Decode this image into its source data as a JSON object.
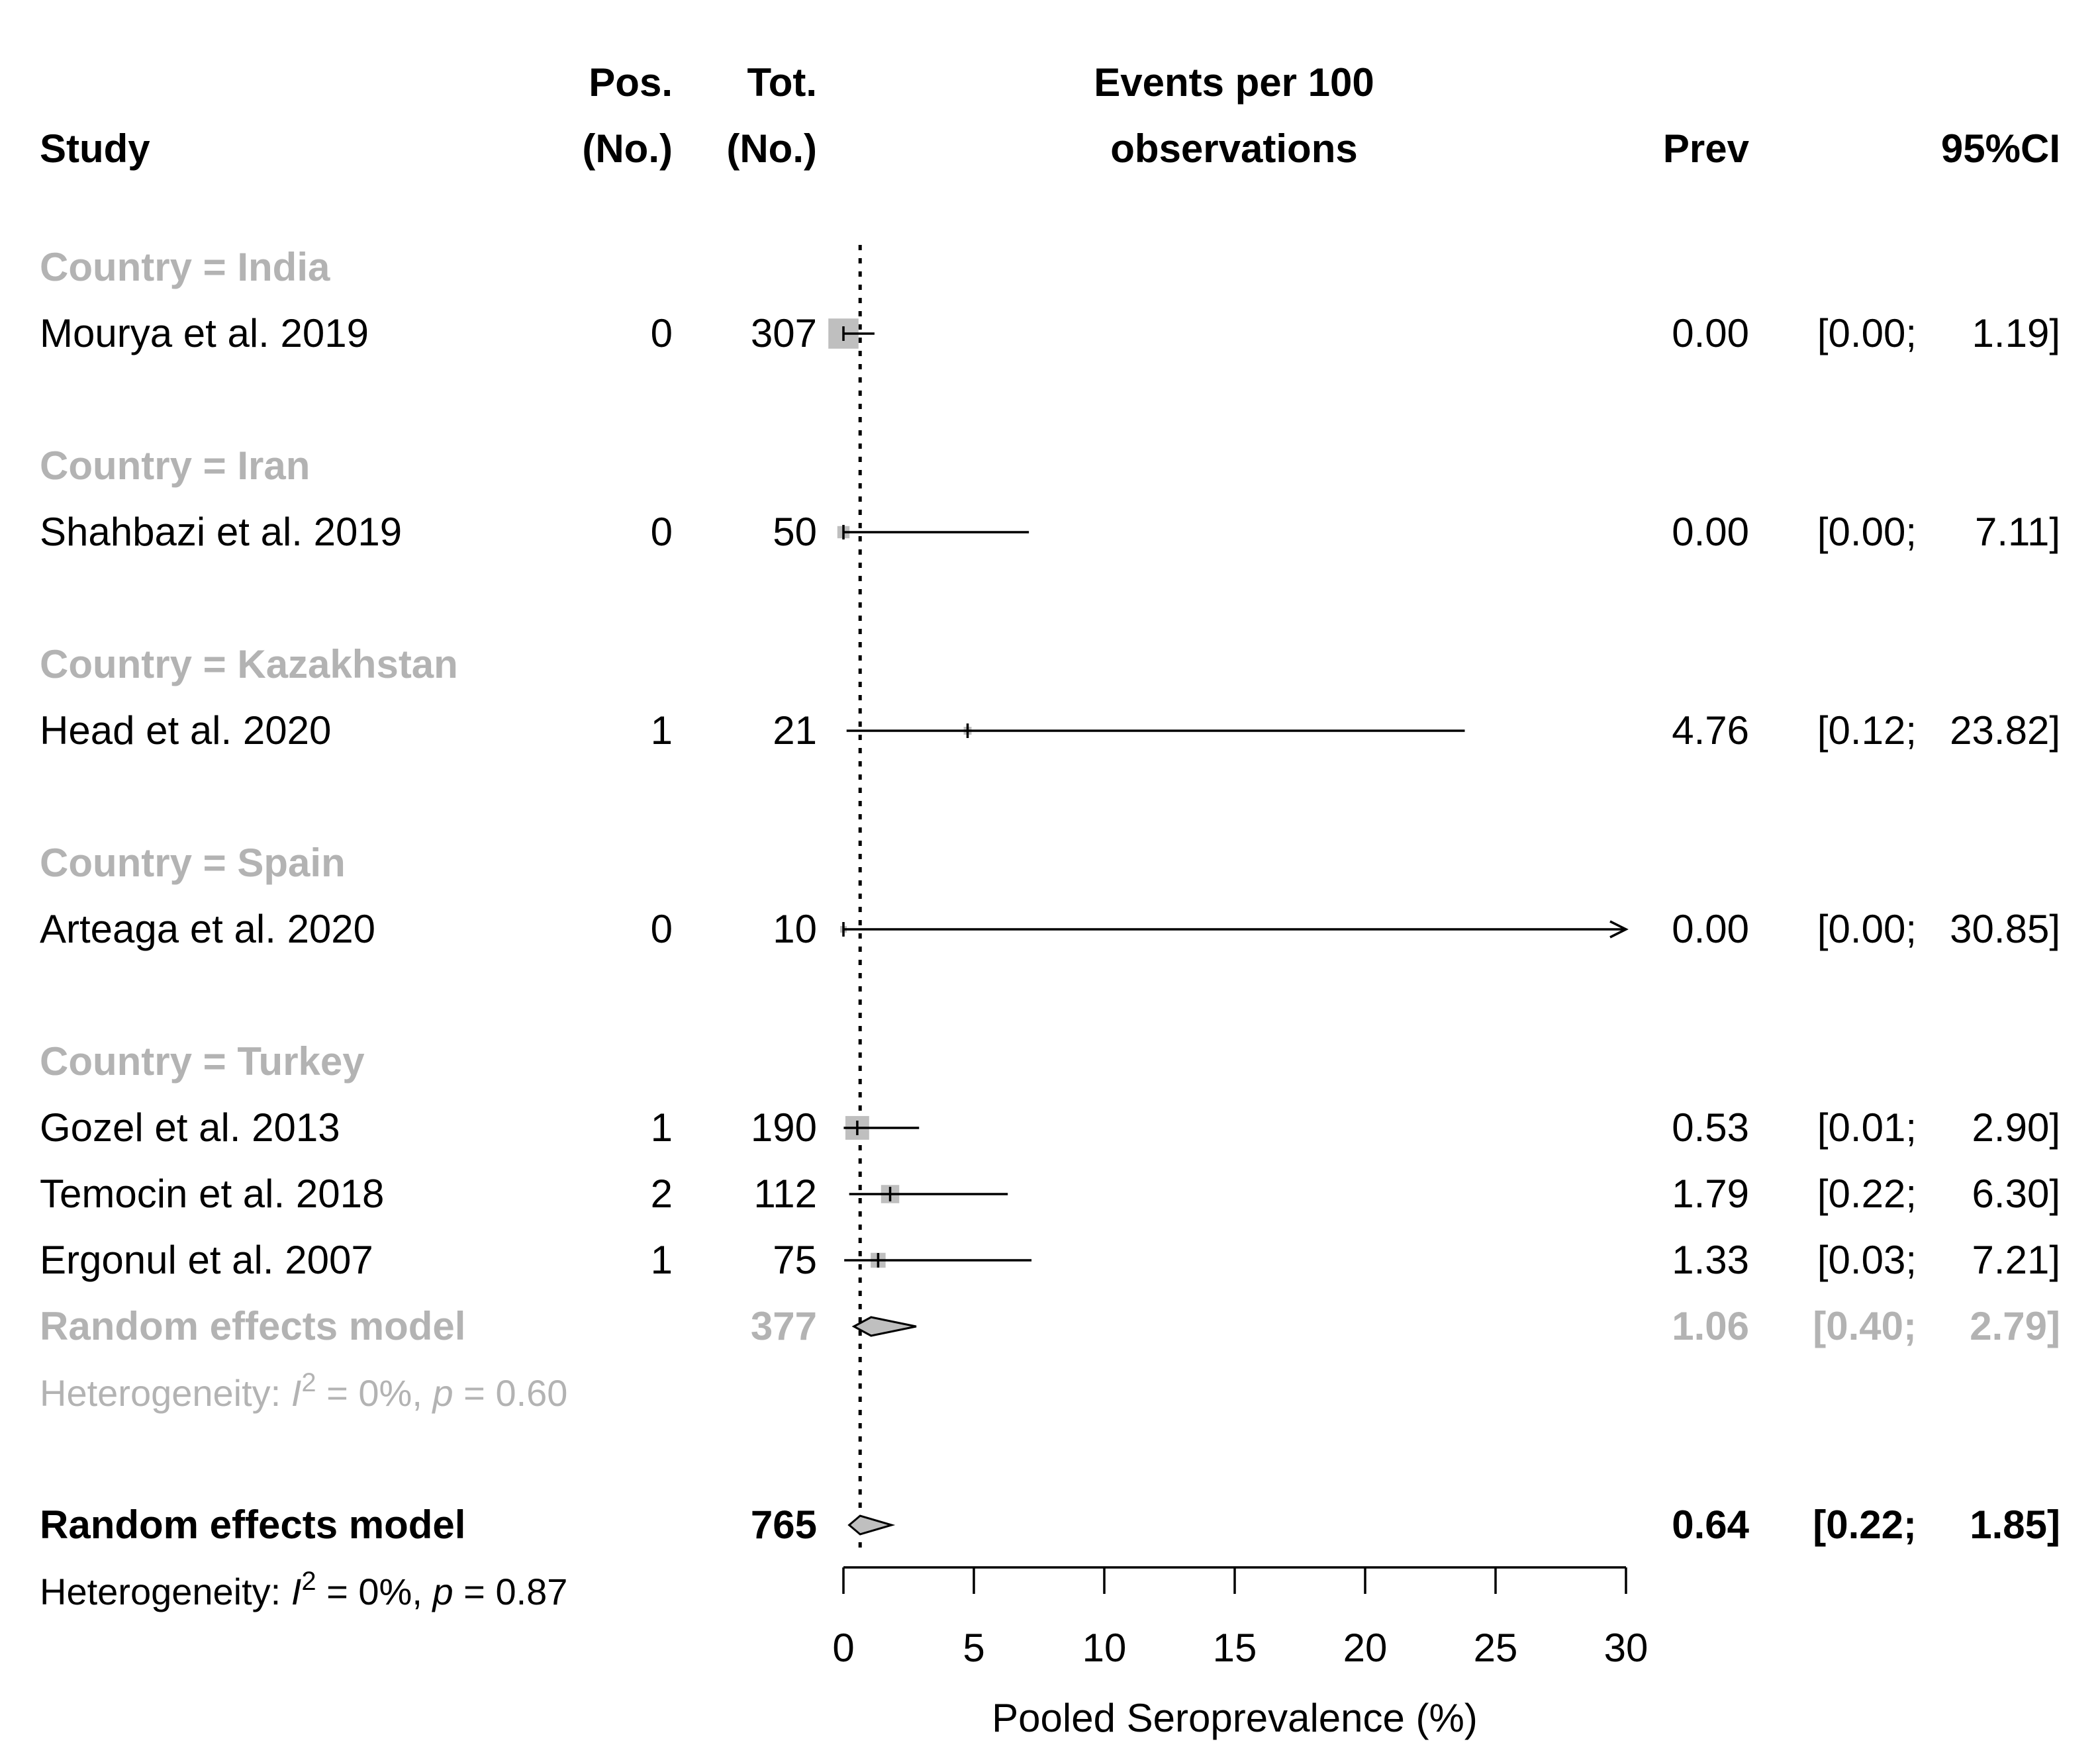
{
  "chart_data": {
    "type": "forest",
    "columns": {
      "study": "Study",
      "pos_line1": "Pos.",
      "pos_line2": "(No.)",
      "tot_line1": "Tot.",
      "tot_line2": "(No.)",
      "events_line1": "Events per 100",
      "events_line2": "observations",
      "prev": "Prev",
      "ci": "95%CI"
    },
    "groups": [
      {
        "label": "Country = India",
        "studies": [
          {
            "name": "Mourya et al. 2019",
            "pos": "0",
            "tot": "307",
            "prev": "0.00",
            "ci_lo": "[0.00;",
            "ci_hi": "1.19]",
            "value": 0.0,
            "lower": 0.0,
            "upper": 1.19
          }
        ]
      },
      {
        "label": "Country = Iran",
        "studies": [
          {
            "name": "Shahbazi et al. 2019",
            "pos": "0",
            "tot": "50",
            "prev": "0.00",
            "ci_lo": "[0.00;",
            "ci_hi": "7.11]",
            "value": 0.0,
            "lower": 0.0,
            "upper": 7.11
          }
        ]
      },
      {
        "label": "Country = Kazakhstan",
        "studies": [
          {
            "name": "Head et al. 2020",
            "pos": "1",
            "tot": "21",
            "prev": "4.76",
            "ci_lo": "[0.12;",
            "ci_hi": "23.82]",
            "value": 4.76,
            "lower": 0.12,
            "upper": 23.82
          }
        ]
      },
      {
        "label": "Country = Spain",
        "studies": [
          {
            "name": "Arteaga et al. 2020",
            "pos": "0",
            "tot": "10",
            "prev": "0.00",
            "ci_lo": "[0.00;",
            "ci_hi": "30.85]",
            "value": 0.0,
            "lower": 0.0,
            "upper": 30.85
          }
        ]
      },
      {
        "label": "Country = Turkey",
        "studies": [
          {
            "name": "Gozel et al. 2013",
            "pos": "1",
            "tot": "190",
            "prev": "0.53",
            "ci_lo": "[0.01;",
            "ci_hi": "2.90]",
            "value": 0.53,
            "lower": 0.01,
            "upper": 2.9
          },
          {
            "name": "Temocin et al. 2018",
            "pos": "2",
            "tot": "112",
            "prev": "1.79",
            "ci_lo": "[0.22;",
            "ci_hi": "6.30]",
            "value": 1.79,
            "lower": 0.22,
            "upper": 6.3
          },
          {
            "name": "Ergonul et al. 2007",
            "pos": "1",
            "tot": "75",
            "prev": "1.33",
            "ci_lo": "[0.03;",
            "ci_hi": "7.21]",
            "value": 1.33,
            "lower": 0.03,
            "upper": 7.21
          }
        ],
        "subgroup_model": {
          "label": "Random effects model",
          "tot": "377",
          "prev": "1.06",
          "ci_lo": "[0.40;",
          "ci_hi": "2.79]",
          "value": 1.06,
          "lower": 0.4,
          "upper": 2.79,
          "heterogeneity_prefix": "Heterogeneity: ",
          "i2_symbol": "I",
          "i2_sup": "2",
          "i2_rest": " = 0%, ",
          "p_symbol": "p",
          "p_rest": " = 0.60"
        }
      }
    ],
    "overall": {
      "label": "Random effects model",
      "tot": "765",
      "prev": "0.64",
      "ci_lo": "[0.22;",
      "ci_hi": "1.85]",
      "value": 0.64,
      "lower": 0.22,
      "upper": 1.85,
      "heterogeneity_prefix": "Heterogeneity: ",
      "i2_symbol": "I",
      "i2_sup": "2",
      "i2_rest": " = 0%, ",
      "p_symbol": "p",
      "p_rest": " = 0.87"
    },
    "reference_line": 0.64,
    "xlim": [
      0,
      30
    ],
    "xticks": [
      "0",
      "5",
      "10",
      "15",
      "20",
      "25",
      "30"
    ],
    "xlabel": "Pooled Seroprevalence (%)"
  }
}
